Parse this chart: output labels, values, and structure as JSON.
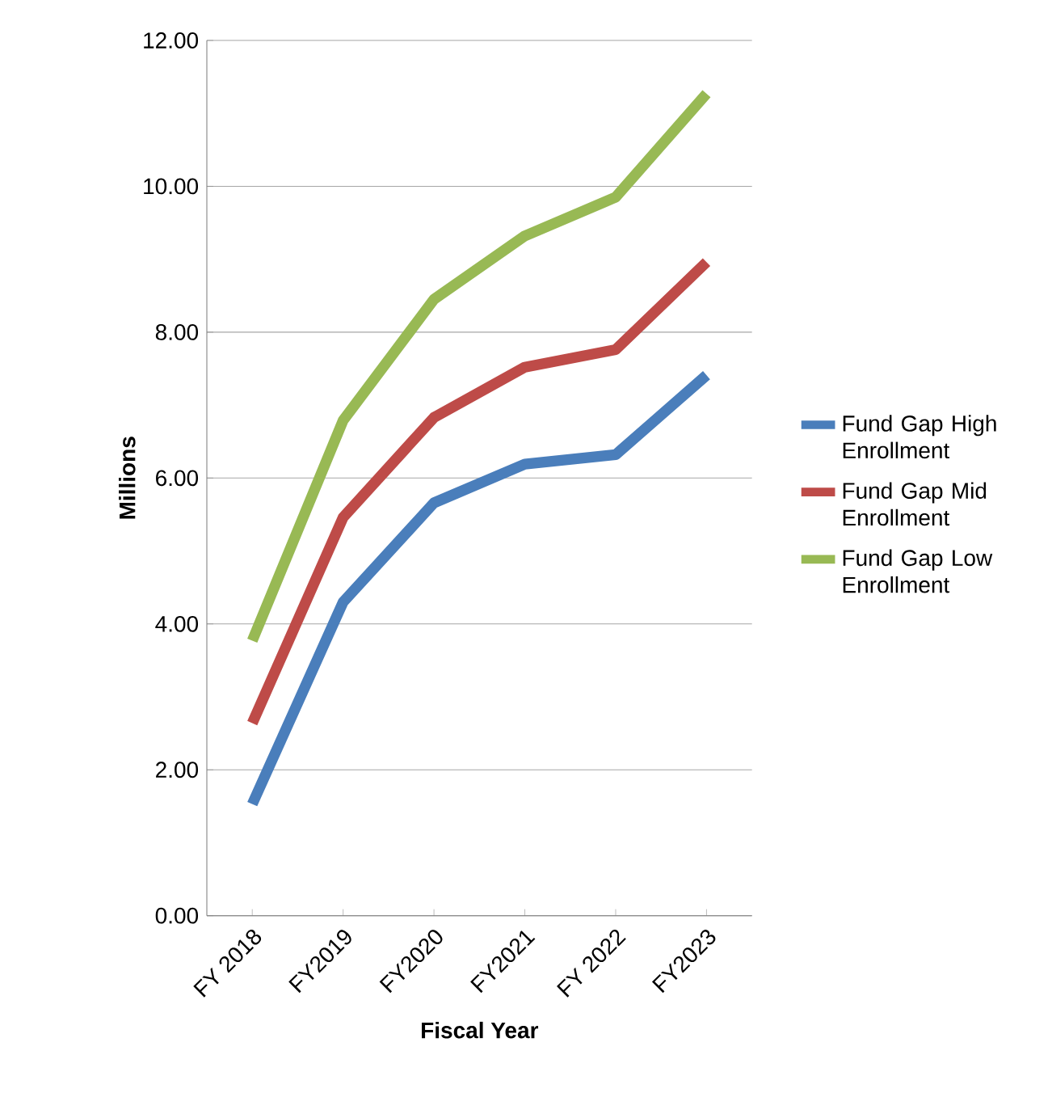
{
  "chart_data": {
    "type": "line",
    "xlabel": "Fiscal Year",
    "ylabel": "Millions",
    "categories": [
      "FY 2018",
      "FY2019",
      "FY2020",
      "FY2021",
      "FY 2022",
      "FY2023"
    ],
    "series": [
      {
        "name": "Fund Gap High Enrollment",
        "color": "#4a7ebb",
        "values": [
          1.53,
          4.3,
          5.66,
          6.19,
          6.32,
          7.41
        ]
      },
      {
        "name": "Fund Gap Mid Enrollment",
        "color": "#be4b48",
        "values": [
          2.64,
          5.46,
          6.83,
          7.52,
          7.76,
          8.96
        ]
      },
      {
        "name": "Fund Gap Low Enrollment",
        "color": "#98b954",
        "values": [
          3.77,
          6.79,
          8.45,
          9.32,
          9.85,
          11.27
        ]
      }
    ],
    "ylim": [
      0,
      12
    ],
    "yticks": [
      {
        "value": 0,
        "label": "0.00"
      },
      {
        "value": 2,
        "label": "2.00"
      },
      {
        "value": 4,
        "label": "4.00"
      },
      {
        "value": 6,
        "label": "6.00"
      },
      {
        "value": 8,
        "label": "8.00"
      },
      {
        "value": 10,
        "label": "10.00"
      },
      {
        "value": 12,
        "label": "12.00"
      }
    ],
    "grid": "y",
    "legend": "right",
    "marker": "none",
    "line_style": "solid"
  }
}
